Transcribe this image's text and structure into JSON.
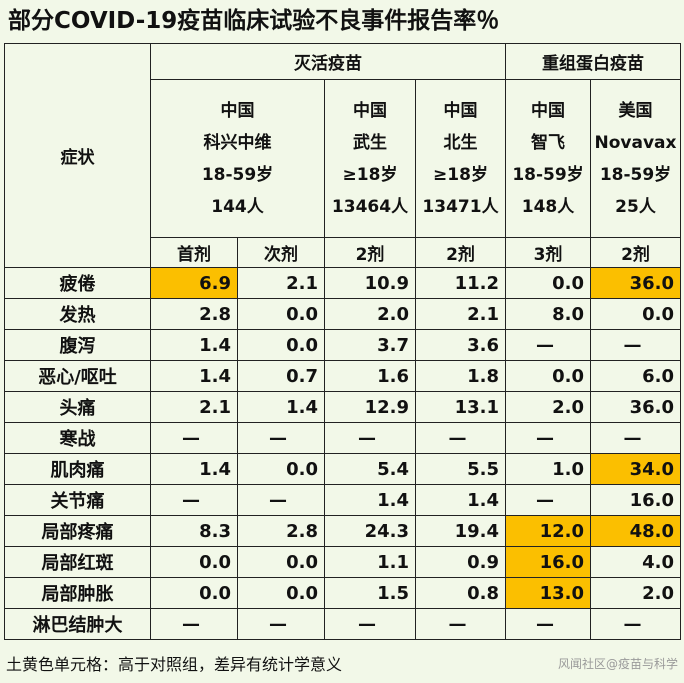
{
  "title": "部分COVID-19疫苗临床试验不良事件报告率％",
  "header": {
    "symptom_label": "症状",
    "groups": [
      "灭活疫苗",
      "重组蛋白疫苗"
    ],
    "vaccines": [
      {
        "country": "中国",
        "name": "科兴中维",
        "age": "18-59岁",
        "n": "144人"
      },
      {
        "country": "中国",
        "name": "武生",
        "age": "≥18岁",
        "n": "13464人"
      },
      {
        "country": "中国",
        "name": "北生",
        "age": "≥18岁",
        "n": "13471人"
      },
      {
        "country": "中国",
        "name": "智飞",
        "age": "18-59岁",
        "n": "148人"
      },
      {
        "country": "美国",
        "name": "Novavax",
        "age": "18-59岁",
        "n": "25人"
      }
    ],
    "doses": [
      "首剂",
      "次剂",
      "2剂",
      "2剂",
      "3剂",
      "2剂"
    ]
  },
  "rows": [
    {
      "symptom": "疲倦",
      "values": [
        "6.9",
        "2.1",
        "10.9",
        "11.2",
        "0.0",
        "36.0"
      ],
      "highlight": [
        true,
        false,
        false,
        false,
        false,
        true
      ]
    },
    {
      "symptom": "发热",
      "values": [
        "2.8",
        "0.0",
        "2.0",
        "2.1",
        "8.0",
        "0.0"
      ],
      "highlight": [
        false,
        false,
        false,
        false,
        false,
        false
      ]
    },
    {
      "symptom": "腹泻",
      "values": [
        "1.4",
        "0.0",
        "3.7",
        "3.6",
        "—",
        "—"
      ],
      "highlight": [
        false,
        false,
        false,
        false,
        false,
        false
      ]
    },
    {
      "symptom": "恶心/呕吐",
      "values": [
        "1.4",
        "0.7",
        "1.6",
        "1.8",
        "0.0",
        "6.0"
      ],
      "highlight": [
        false,
        false,
        false,
        false,
        false,
        false
      ]
    },
    {
      "symptom": "头痛",
      "values": [
        "2.1",
        "1.4",
        "12.9",
        "13.1",
        "2.0",
        "36.0"
      ],
      "highlight": [
        false,
        false,
        false,
        false,
        false,
        false
      ]
    },
    {
      "symptom": "寒战",
      "values": [
        "—",
        "—",
        "—",
        "—",
        "—",
        "—"
      ],
      "highlight": [
        false,
        false,
        false,
        false,
        false,
        false
      ]
    },
    {
      "symptom": "肌肉痛",
      "values": [
        "1.4",
        "0.0",
        "5.4",
        "5.5",
        "1.0",
        "34.0"
      ],
      "highlight": [
        false,
        false,
        false,
        false,
        false,
        true
      ]
    },
    {
      "symptom": "关节痛",
      "values": [
        "—",
        "—",
        "1.4",
        "1.4",
        "—",
        "16.0"
      ],
      "highlight": [
        false,
        false,
        false,
        false,
        false,
        false
      ]
    },
    {
      "symptom": "局部疼痛",
      "values": [
        "8.3",
        "2.8",
        "24.3",
        "19.4",
        "12.0",
        "48.0"
      ],
      "highlight": [
        false,
        false,
        false,
        false,
        true,
        true
      ]
    },
    {
      "symptom": "局部红斑",
      "values": [
        "0.0",
        "0.0",
        "1.1",
        "0.9",
        "16.0",
        "4.0"
      ],
      "highlight": [
        false,
        false,
        false,
        false,
        true,
        false
      ]
    },
    {
      "symptom": "局部肿胀",
      "values": [
        "0.0",
        "0.0",
        "1.5",
        "0.8",
        "13.0",
        "2.0"
      ],
      "highlight": [
        false,
        false,
        false,
        false,
        true,
        false
      ]
    },
    {
      "symptom": "淋巴结肿大",
      "values": [
        "—",
        "—",
        "—",
        "—",
        "—",
        "—"
      ],
      "highlight": [
        false,
        false,
        false,
        false,
        false,
        false
      ]
    }
  ],
  "footnote": "土黄色单元格：高于对照组，差异有统计学意义",
  "watermark": "风闻社区@疫苗与科学",
  "colors": {
    "highlight": "#fbbf00",
    "background": "#f2f8e8"
  }
}
